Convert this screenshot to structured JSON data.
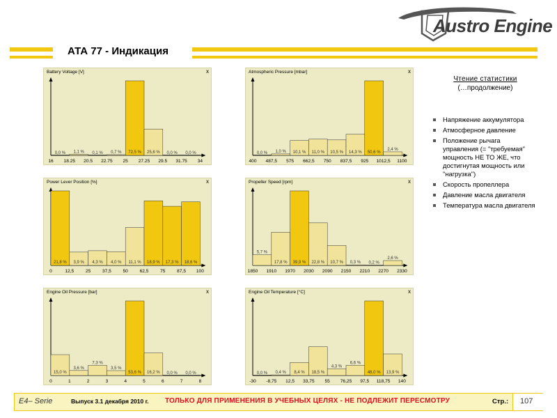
{
  "header": {
    "title": "АТА 77 - Индикация",
    "logo_text": "Austro Engine"
  },
  "sidebar": {
    "title": "Чтение статистики",
    "subtitle": "(…продолжение)",
    "items": [
      "Напряжение аккумулятора",
      "Атмосферное давление",
      "Положение рычага управления (= \"требуемая\" мощность НЕ ТО ЖЕ, что достигнутая мощность или \"нагрузка\")",
      "Скорость пропеллера",
      "Давление масла двигателя",
      "Температура масла двигателя"
    ]
  },
  "footer": {
    "series": "E4– Serie",
    "issue": "Выпуск 3.1 декабря 2010 г.",
    "warning": "ТОЛЬКО ДЛЯ ПРИМЕНЕНИЯ В УЧЕБНЫХ ЦЕЛЯХ - НЕ ПОДЛЕЖИТ ПЕРЕСМОТРУ",
    "page_label": "Стр.:",
    "page_number": "107"
  },
  "colors": {
    "accent": "#f2c70f",
    "panel_bg": "#ecebc5",
    "bar_light": "#f1e39a",
    "bar_dark": "#f2c70f",
    "warning": "#e0101e"
  },
  "panel_close_glyph": "x",
  "chart_data": [
    {
      "type": "bar",
      "title": "Battery Voltage [V]",
      "ticks": [
        "16",
        "18.25",
        "20.5",
        "22.75",
        "25",
        "27.25",
        "29.5",
        "31.75",
        "34"
      ],
      "values": [
        0.0,
        1.1,
        0.1,
        0.7,
        72.5,
        25.6,
        0.0,
        0.0
      ],
      "labels": [
        "0,0 %",
        "1,1 %",
        "0,1 %",
        "0,7 %",
        "72,5 %",
        "25,6 %",
        "0,0 %",
        "0,0 %"
      ],
      "highlight": [
        4
      ]
    },
    {
      "type": "bar",
      "title": "Atmospheric Pressure [mbar]",
      "ticks": [
        "400",
        "487,5",
        "575",
        "662,5",
        "750",
        "837,5",
        "925",
        "1012,5",
        "1100"
      ],
      "values": [
        0.0,
        1.0,
        10.1,
        11.0,
        10.5,
        14.3,
        50.6,
        2.4
      ],
      "labels": [
        "0,0 %",
        "1,0 %",
        "10,1 %",
        "11,0 %",
        "10,5 %",
        "14,3 %",
        "50,6 %",
        "2,4 %"
      ],
      "highlight": [
        6
      ]
    },
    {
      "type": "bar",
      "title": "Power Lever Position [%]",
      "ticks": [
        "0",
        "12,5",
        "25",
        "37,5",
        "50",
        "62,5",
        "75",
        "87,5",
        "100"
      ],
      "values": [
        21.8,
        3.9,
        4.3,
        4.0,
        11.1,
        18.9,
        17.3,
        18.6
      ],
      "labels": [
        "21,8 %",
        "3,9 %",
        "4,3 %",
        "4,0 %",
        "11,1 %",
        "18,9 %",
        "17,3 %",
        "18,6 %"
      ],
      "highlight": [
        0,
        5,
        6,
        7
      ]
    },
    {
      "type": "bar",
      "title": "Propeller Speed [rpm]",
      "ticks": [
        "1850",
        "1910",
        "1970",
        "2030",
        "2090",
        "2150",
        "2210",
        "2270",
        "2330"
      ],
      "values": [
        5.7,
        17.8,
        39.9,
        22.8,
        10.7,
        0.3,
        0.2,
        2.6
      ],
      "labels": [
        "5,7 %",
        "17,8 %",
        "39,9 %",
        "22,8 %",
        "10,7 %",
        "0,3 %",
        "0,2 %",
        "2,6 %"
      ],
      "highlight": [
        2
      ]
    },
    {
      "type": "bar",
      "title": "Engine Oil Pressure [bar]",
      "ticks": [
        "0",
        "1",
        "2",
        "3",
        "4",
        "5",
        "6",
        "7",
        "8"
      ],
      "values": [
        15.0,
        3.6,
        7.3,
        3.5,
        53.6,
        16.2,
        0.0,
        0.0
      ],
      "labels": [
        "15,0 %",
        "3,6 %",
        "7,3 %",
        "3,5 %",
        "53,6 %",
        "16,2 %",
        "0,0 %",
        "0,0 %"
      ],
      "highlight": [
        4
      ]
    },
    {
      "type": "bar",
      "title": "Engine Oil Temperature [°C]",
      "ticks": [
        "-30",
        "-8,75",
        "12,5",
        "33,75",
        "55",
        "76,25",
        "97,5",
        "118,75",
        "140"
      ],
      "values": [
        0.0,
        0.4,
        8.4,
        18.5,
        4.3,
        6.6,
        48.0,
        13.9
      ],
      "labels": [
        "0,0 %",
        "0,4 %",
        "8,4 %",
        "18,5 %",
        "4,3 %",
        "6,6 %",
        "48,0 %",
        "13,9 %"
      ],
      "highlight": [
        6
      ]
    }
  ]
}
